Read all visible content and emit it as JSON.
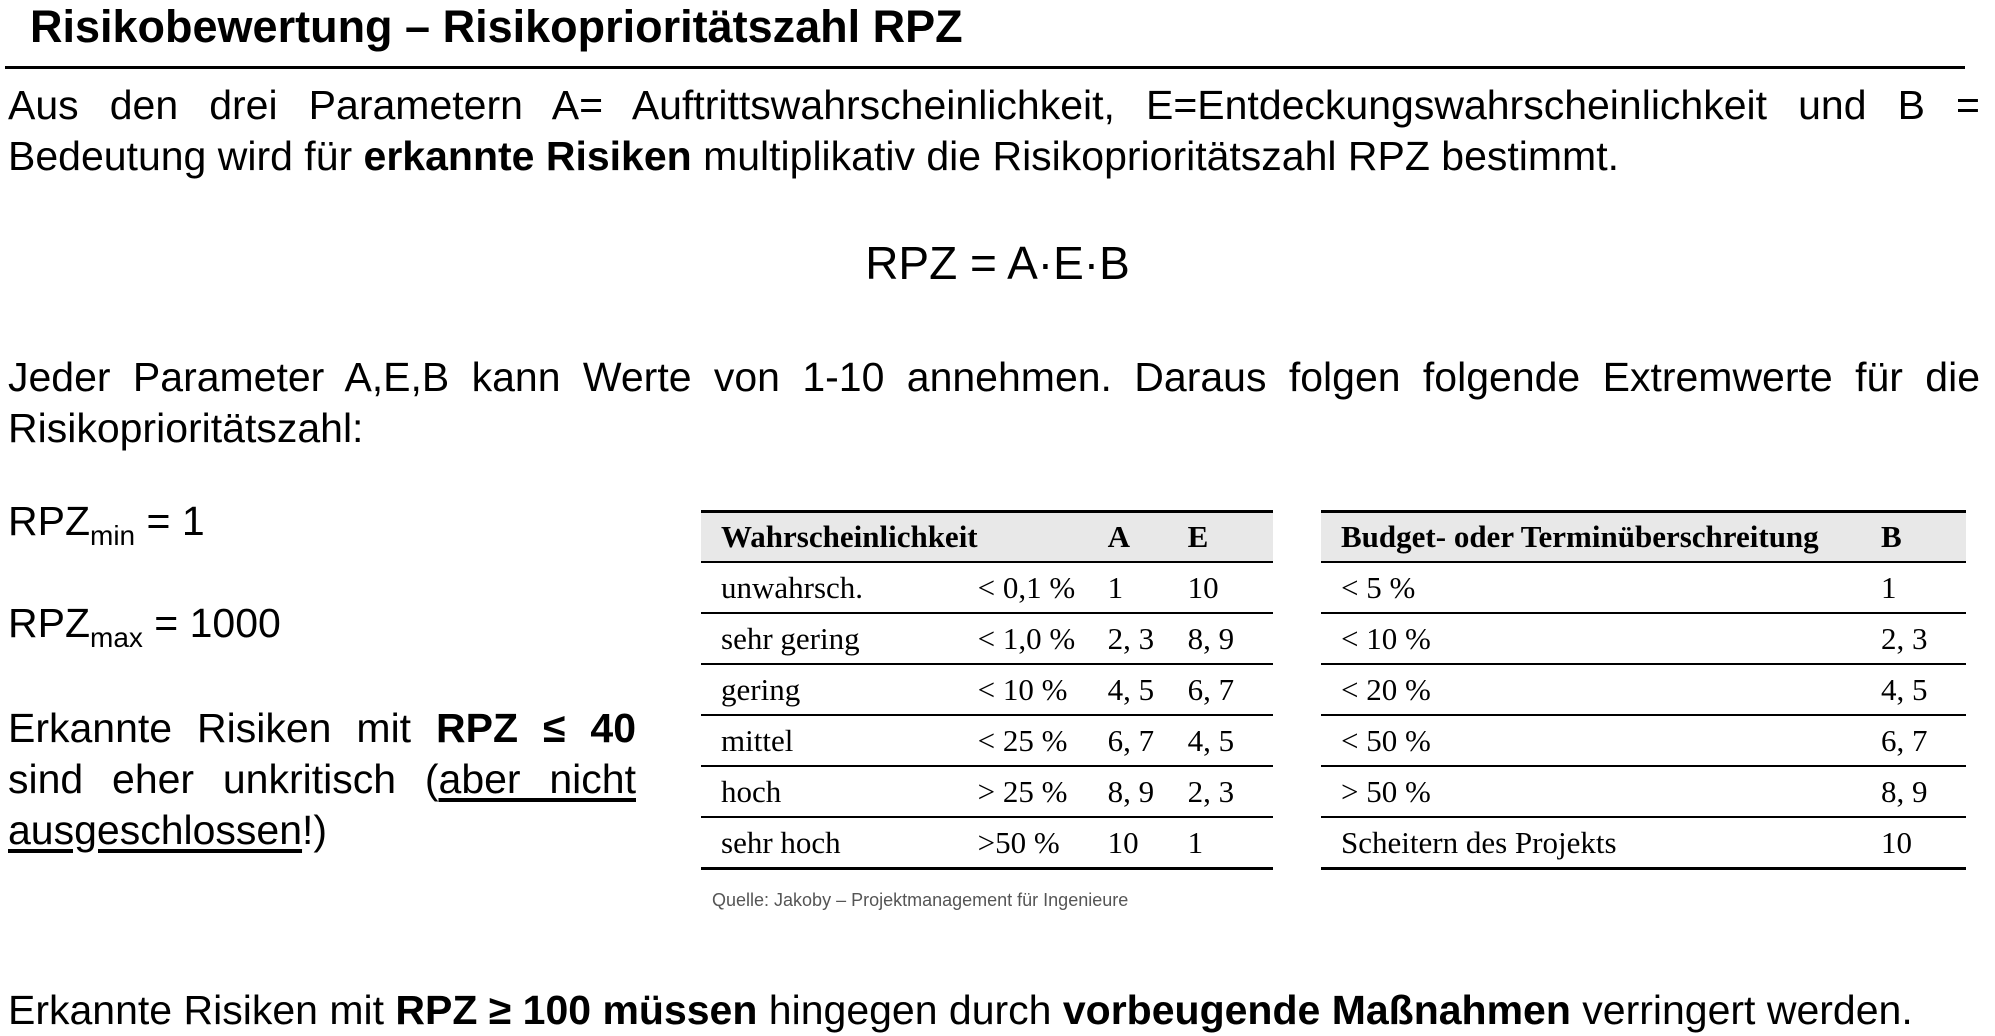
{
  "title": "Risikobewertung – Risikoprioritätszahl RPZ",
  "intro": {
    "part1": "Aus den drei Parametern A= Auftrittswahrscheinlichkeit, E=Entdeckungswahrscheinlichkeit und B = Bedeutung wird für ",
    "bold": "erkannte Risiken",
    "part2": " multiplikativ die Risikoprioritätszahl RPZ bestimmt."
  },
  "formula": "RPZ = A·E·B",
  "params_text": "Jeder Parameter A,E,B kann Werte von 1-10 annehmen. Daraus folgen folgende Extremwerte für die Risikoprioritätszahl:",
  "rpz_min": {
    "base": "RPZ",
    "sub": "min",
    "value": " = 1"
  },
  "rpz_max": {
    "base": "RPZ",
    "sub": "max",
    "value": " = 1000"
  },
  "uncritical": {
    "part1": "Erkannte Risiken mit ",
    "bold": "RPZ ≤ 40",
    "part2": " sind eher unkritisch (",
    "underlined": "aber nicht ausgeschlossen",
    "part3": "!)"
  },
  "probability_table": {
    "headers": [
      "Wahrscheinlichkeit",
      "",
      "A",
      "E"
    ],
    "rows": [
      [
        "unwahrsch.",
        "< 0,1 %",
        "1",
        "10"
      ],
      [
        "sehr gering",
        "< 1,0 %",
        "2, 3",
        "8, 9"
      ],
      [
        "gering",
        "< 10 %",
        "4, 5",
        "6, 7"
      ],
      [
        "mittel",
        "< 25 %",
        "6, 7",
        "4, 5"
      ],
      [
        "hoch",
        "> 25 %",
        "8, 9",
        "2, 3"
      ],
      [
        "sehr hoch",
        ">50 %",
        "10",
        "1"
      ]
    ]
  },
  "budget_table": {
    "headers": [
      "Budget- oder Terminüberschreitung",
      "B"
    ],
    "rows": [
      [
        " < 5 %",
        "1"
      ],
      [
        "< 10 %",
        "2, 3"
      ],
      [
        "< 20 %",
        "4, 5"
      ],
      [
        "< 50 %",
        "6, 7"
      ],
      [
        "> 50 %",
        "8, 9"
      ],
      [
        "Scheitern des Projekts",
        "10"
      ]
    ]
  },
  "source": "Quelle: Jakoby – Projektmanagement für Ingenieure",
  "conclusion": {
    "part1": "Erkannte Risiken mit ",
    "bold1": "RPZ ≥ 100 müssen",
    "part2": " hingegen durch ",
    "bold2": "vorbeugende Maßnahmen",
    "part3": " verringert werden."
  }
}
